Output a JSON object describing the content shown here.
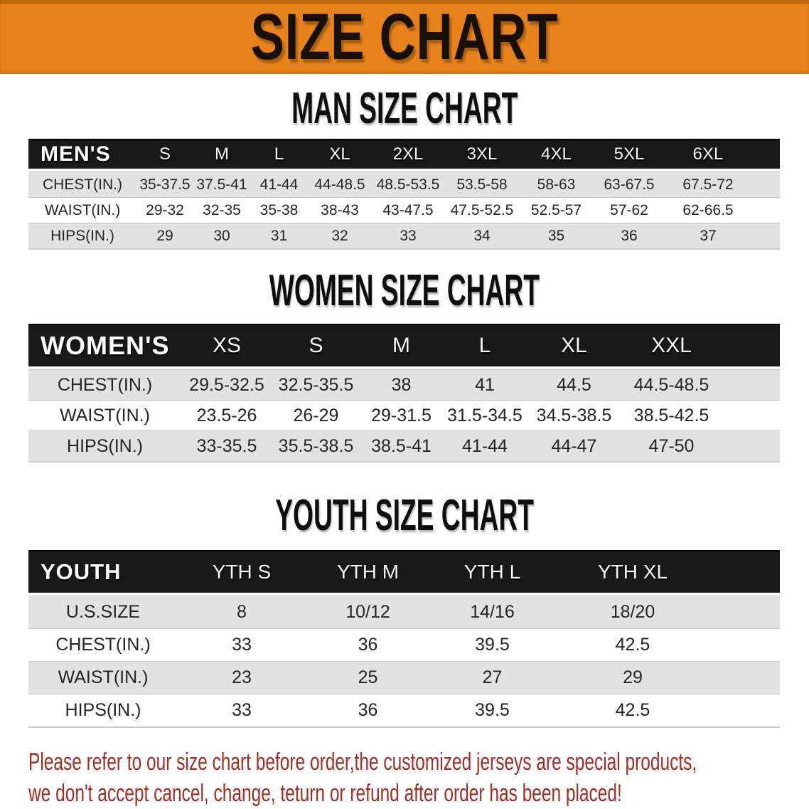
{
  "banner": {
    "title": "SIZE CHART",
    "bg_color": "#E8831C"
  },
  "colors": {
    "banner_bg": "#E8831C",
    "table_header_bar": "#191919",
    "row_gray": "#E2E2E2",
    "disclaimer_red": "#A62B22"
  },
  "men_chart": {
    "heading": "MAN SIZE CHART",
    "table": {
      "corner": "MEN'S",
      "columns": [
        "S",
        "M",
        "L",
        "XL",
        "2XL",
        "3XL",
        "4XL",
        "5XL",
        "6XL"
      ],
      "rows": [
        {
          "label": "CHEST(IN.)",
          "values": [
            "35-37.5",
            "37.5-41",
            "41-44",
            "44-48.5",
            "48.5-53.5",
            "53.5-58",
            "58-63",
            "63-67.5",
            "67.5-72"
          ]
        },
        {
          "label": "WAIST(IN.)",
          "values": [
            "29-32",
            "32-35",
            "35-38",
            "38-43",
            "43-47.5",
            "47.5-52.5",
            "52.5-57",
            "57-62",
            "62-66.5"
          ]
        },
        {
          "label": "HIPS(IN.)",
          "values": [
            "29",
            "30",
            "31",
            "32",
            "33",
            "34",
            "35",
            "36",
            "37"
          ]
        }
      ]
    }
  },
  "women_chart": {
    "heading": "WOMEN SIZE CHART",
    "table": {
      "corner": "WOMEN'S",
      "columns": [
        "XS",
        "S",
        "M",
        "L",
        "XL",
        "XXL"
      ],
      "rows": [
        {
          "label": "CHEST(IN.)",
          "values": [
            "29.5-32.5",
            "32.5-35.5",
            "38",
            "41",
            "44.5",
            "44.5-48.5"
          ]
        },
        {
          "label": "WAIST(IN.)",
          "values": [
            "23.5-26",
            "26-29",
            "29-31.5",
            "31.5-34.5",
            "34.5-38.5",
            "38.5-42.5"
          ]
        },
        {
          "label": "HIPS(IN.)",
          "values": [
            "33-35.5",
            "35.5-38.5",
            "38.5-41",
            "41-44",
            "44-47",
            "47-50"
          ]
        }
      ]
    }
  },
  "youth_chart": {
    "heading": "YOUTH SIZE CHART",
    "table": {
      "corner": "YOUTH",
      "columns": [
        "YTH S",
        "YTH M",
        "YTH L",
        "YTH XL"
      ],
      "rows": [
        {
          "label": "U.S.SIZE",
          "values": [
            "8",
            "10/12",
            "14/16",
            "18/20"
          ]
        },
        {
          "label": "CHEST(IN.)",
          "values": [
            "33",
            "36",
            "39.5",
            "42.5"
          ]
        },
        {
          "label": "WAIST(IN.)",
          "values": [
            "23",
            "25",
            "27",
            "29"
          ]
        },
        {
          "label": "HIPS(IN.)",
          "values": [
            "33",
            "36",
            "39.5",
            "42.5"
          ]
        }
      ]
    }
  },
  "disclaimer": {
    "lines": [
      "Please refer to our size chart before order,the customized jerseys are special products,",
      "we don't accept cancel, change, teturn or refund after order has been placed!"
    ]
  }
}
